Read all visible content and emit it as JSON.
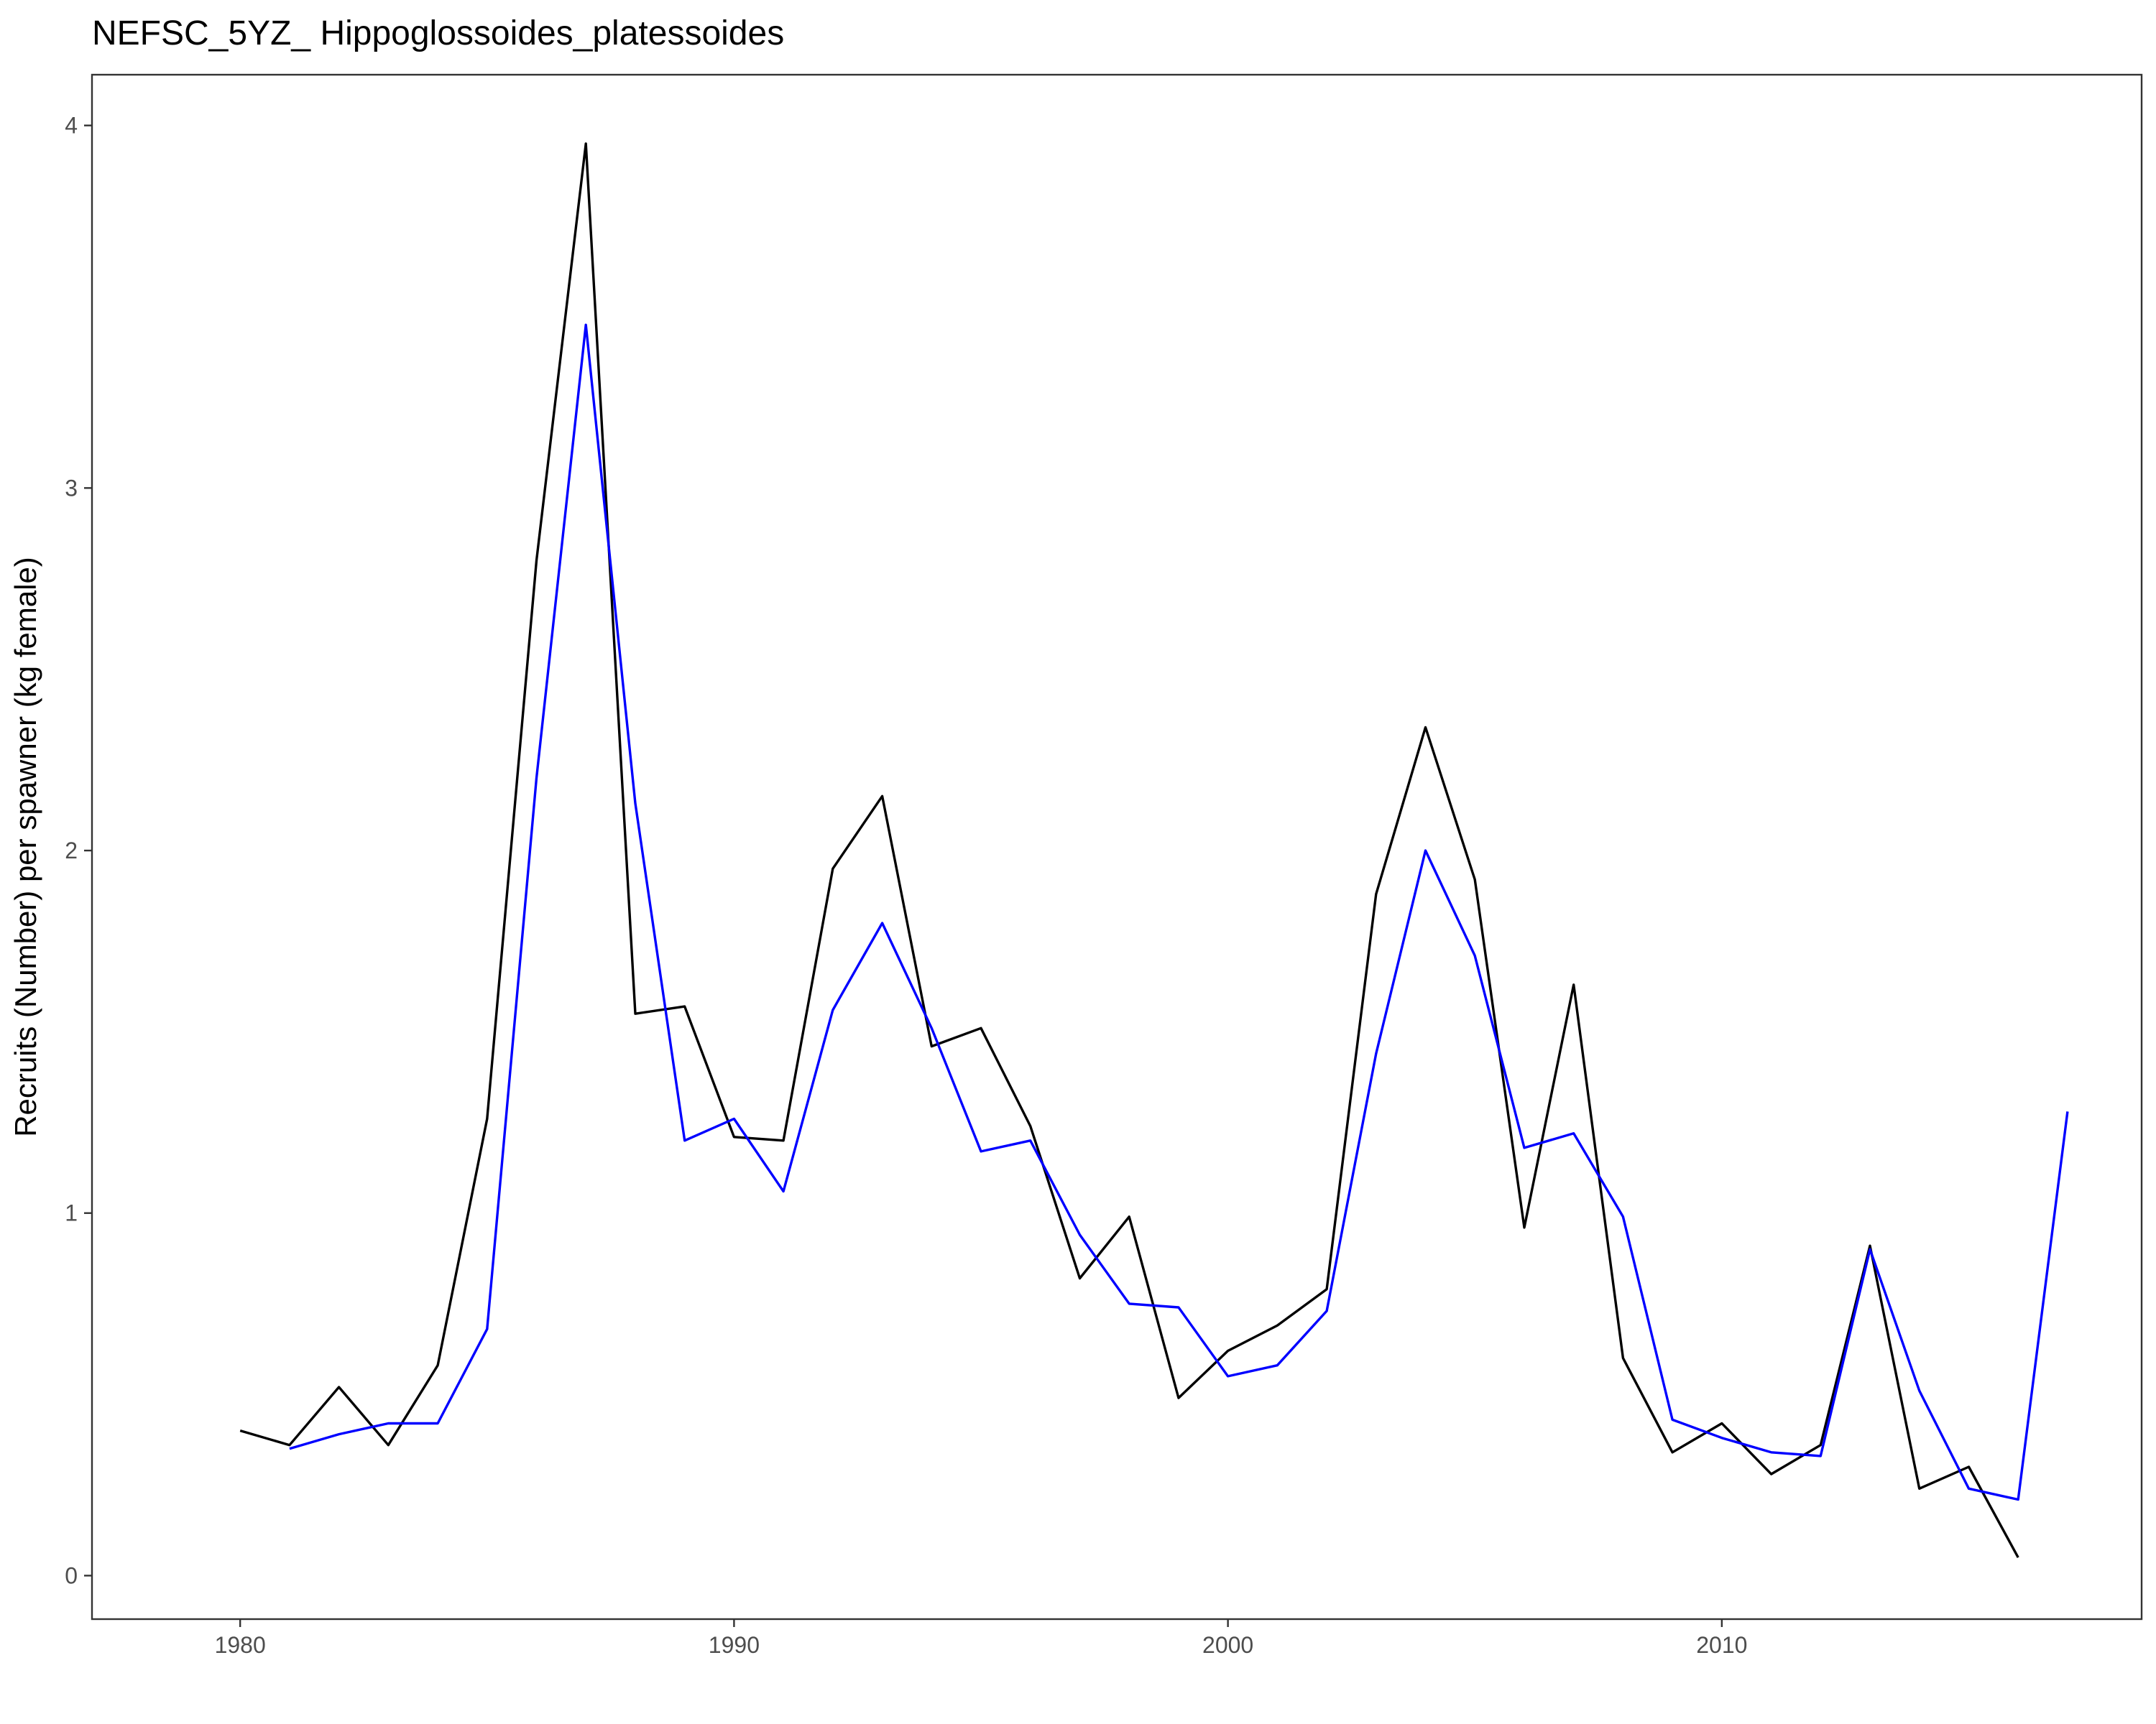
{
  "chart_data": {
    "type": "line",
    "title": "NEFSC_5YZ_ Hippoglossoides_platessoides",
    "xlabel": "",
    "ylabel": "Recruits (Number) per spawner (kg female)",
    "xlim": [
      1977,
      2018.5
    ],
    "ylim": [
      -0.12,
      4.14
    ],
    "x_ticks": [
      1980,
      1990,
      2000,
      2010
    ],
    "y_ticks": [
      0,
      1,
      2,
      3,
      4
    ],
    "grid": false,
    "legend": "none",
    "series": [
      {
        "color": "#000000",
        "x": [
          1980,
          1981,
          1982,
          1983,
          1984,
          1985,
          1986,
          1987,
          1988,
          1989,
          1990,
          1991,
          1992,
          1993,
          1994,
          1995,
          1996,
          1997,
          1998,
          1999,
          2000,
          2001,
          2002,
          2003,
          2004,
          2005,
          2006,
          2007,
          2008,
          2009,
          2010,
          2011,
          2012,
          2013,
          2014,
          2015,
          2016
        ],
        "y": [
          0.4,
          0.36,
          0.52,
          0.36,
          0.58,
          1.26,
          2.8,
          3.95,
          1.55,
          1.57,
          1.21,
          1.2,
          1.95,
          2.15,
          1.46,
          1.51,
          1.24,
          0.82,
          0.99,
          0.49,
          0.62,
          0.69,
          0.79,
          1.88,
          2.34,
          1.92,
          0.96,
          1.63,
          0.6,
          0.34,
          0.42,
          0.28,
          0.36,
          0.91,
          0.24,
          0.3,
          0.05
        ]
      },
      {
        "color": "#0000ff",
        "x": [
          1981,
          1982,
          1983,
          1984,
          1985,
          1986,
          1987,
          1988,
          1989,
          1990,
          1991,
          1992,
          1993,
          1994,
          1995,
          1996,
          1997,
          1998,
          1999,
          2000,
          2001,
          2002,
          2003,
          2004,
          2005,
          2006,
          2007,
          2008,
          2009,
          2010,
          2011,
          2012,
          2013,
          2014,
          2015,
          2016,
          2017
        ],
        "y": [
          0.35,
          0.39,
          0.42,
          0.42,
          0.68,
          2.2,
          3.45,
          2.13,
          1.2,
          1.26,
          1.06,
          1.56,
          1.8,
          1.51,
          1.17,
          1.2,
          0.94,
          0.75,
          0.74,
          0.55,
          0.58,
          0.73,
          1.44,
          2.0,
          1.71,
          1.18,
          1.22,
          0.99,
          0.43,
          0.38,
          0.34,
          0.33,
          0.9,
          0.51,
          0.24,
          0.21,
          1.28
        ]
      }
    ]
  }
}
